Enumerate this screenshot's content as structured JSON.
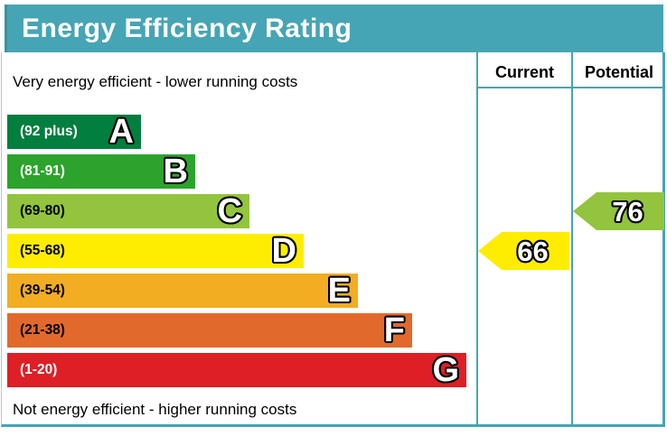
{
  "title": "Energy Efficiency Rating",
  "top_note": "Very energy efficient - lower running costs",
  "bottom_note": "Not energy efficient - higher running costs",
  "columns": {
    "current": "Current",
    "potential": "Potential"
  },
  "colors": {
    "frame": "#46a5b4",
    "title_bg": "#46a5b4",
    "title_text": "#ffffff"
  },
  "chart_data": {
    "type": "bar",
    "title": "Energy Efficiency Rating",
    "legend_position": "none",
    "bands": [
      {
        "letter": "A",
        "range": "(92 plus)",
        "color": "#027e3e",
        "text_color": "#ffffff"
      },
      {
        "letter": "B",
        "range": "(81-91)",
        "color": "#2ca32c",
        "text_color": "#ffffff"
      },
      {
        "letter": "C",
        "range": "(69-80)",
        "color": "#92c43d",
        "text_color": "#000000"
      },
      {
        "letter": "D",
        "range": "(55-68)",
        "color": "#ffed00",
        "text_color": "#000000"
      },
      {
        "letter": "E",
        "range": "(39-54)",
        "color": "#f2ad23",
        "text_color": "#000000"
      },
      {
        "letter": "F",
        "range": "(21-38)",
        "color": "#e2692c",
        "text_color": "#000000"
      },
      {
        "letter": "G",
        "range": "(1-20)",
        "color": "#de1f26",
        "text_color": "#ffffff"
      }
    ],
    "current": {
      "value": 66,
      "band": "D",
      "color": "#ffed00"
    },
    "potential": {
      "value": 76,
      "band": "C",
      "color": "#92c43d"
    }
  }
}
